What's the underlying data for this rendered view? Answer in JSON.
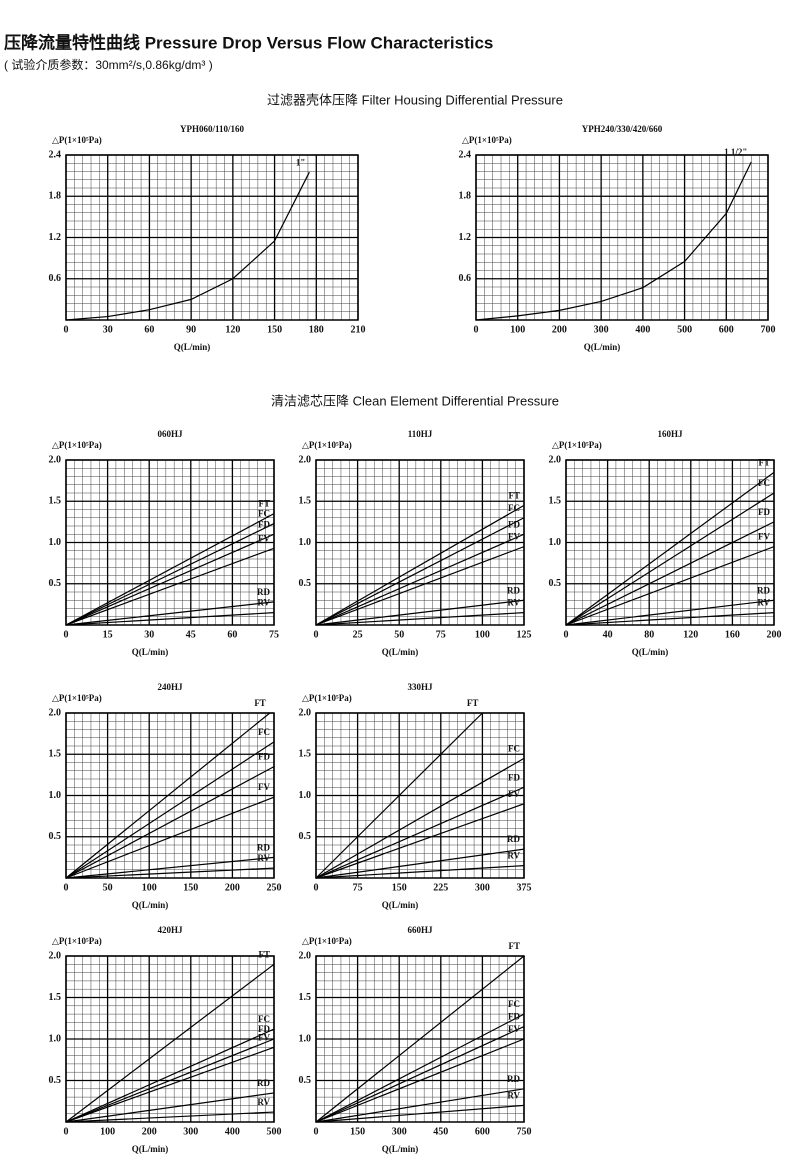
{
  "title": "压降流量特性曲线 Pressure Drop Versus Flow Characteristics",
  "subtitle": "( 试验介质参数：30mm²/s,0.86kg/dm³ )",
  "sections": [
    "过滤器壳体压降 Filter Housing Differential Pressure",
    "清洁滤芯压降 Clean Element Differential Pressure"
  ],
  "chart_data": [
    {
      "type": "line",
      "title": "YPH060/110/160",
      "y_label": "△P(1×10⁵Pa)",
      "x_label": "Q(L/min)",
      "color": "#000000",
      "xlim": [
        0,
        210
      ],
      "xticks": [
        0,
        30,
        60,
        90,
        120,
        150,
        180,
        210
      ],
      "ylim": [
        0,
        2.4
      ],
      "yticks": [
        0.6,
        1.2,
        1.8,
        2.4
      ],
      "series": [
        {
          "name": "1\"",
          "x": [
            0,
            30,
            60,
            90,
            120,
            150,
            175
          ],
          "values": [
            0,
            0.05,
            0.15,
            0.3,
            0.6,
            1.15,
            2.15
          ]
        }
      ]
    },
    {
      "type": "line",
      "title": "YPH240/330/420/660",
      "y_label": "△P(1×10⁵Pa)",
      "x_label": "Q(L/min)",
      "color": "#000000",
      "xlim": [
        0,
        700
      ],
      "xticks": [
        0,
        100,
        200,
        300,
        400,
        500,
        600,
        700
      ],
      "ylim": [
        0,
        2.4
      ],
      "yticks": [
        0.6,
        1.2,
        1.8,
        2.4
      ],
      "series": [
        {
          "name": "1 1/2\"",
          "x": [
            0,
            100,
            200,
            300,
            400,
            500,
            600,
            660
          ],
          "values": [
            0,
            0.06,
            0.14,
            0.27,
            0.47,
            0.85,
            1.55,
            2.3
          ]
        }
      ]
    },
    {
      "type": "line",
      "title": "060HJ",
      "y_label": "△P(1×10⁵Pa)",
      "x_label": "Q(L/min)",
      "color": "#000000",
      "xlim": [
        0,
        75
      ],
      "xticks": [
        0,
        15,
        30,
        45,
        60,
        75
      ],
      "ylim": [
        0,
        2
      ],
      "yticks": [
        {
          "value": 0.5,
          "label": "0.5"
        },
        {
          "value": 1,
          "label": "1.0"
        },
        {
          "value": 1.5,
          "label": "1.5"
        },
        {
          "value": 2,
          "label": "2.0"
        }
      ],
      "series": [
        {
          "name": "FT",
          "x": [
            0,
            75
          ],
          "values": [
            0,
            1.35
          ]
        },
        {
          "name": "FC",
          "x": [
            0,
            75
          ],
          "values": [
            0,
            1.23
          ]
        },
        {
          "name": "FD",
          "x": [
            0,
            75
          ],
          "values": [
            0,
            1.1
          ]
        },
        {
          "name": "FV",
          "x": [
            0,
            75
          ],
          "values": [
            0,
            0.93
          ]
        },
        {
          "name": "RD",
          "x": [
            0,
            75
          ],
          "values": [
            0,
            0.28
          ]
        },
        {
          "name": "RV",
          "x": [
            0,
            75
          ],
          "values": [
            0,
            0.15
          ]
        }
      ]
    },
    {
      "type": "line",
      "title": "110HJ",
      "y_label": "△P(1×10⁵Pa)",
      "x_label": "Q(L/min)",
      "color": "#000000",
      "xlim": [
        0,
        125
      ],
      "xticks": [
        0,
        25,
        50,
        75,
        100,
        125
      ],
      "ylim": [
        0,
        2
      ],
      "yticks": [
        {
          "value": 0.5,
          "label": "0.5"
        },
        {
          "value": 1,
          "label": "1.0"
        },
        {
          "value": 1.5,
          "label": "1.5"
        },
        {
          "value": 2,
          "label": "2.0"
        }
      ],
      "series": [
        {
          "name": "FT",
          "x": [
            0,
            125
          ],
          "values": [
            0,
            1.45
          ]
        },
        {
          "name": "FC",
          "x": [
            0,
            125
          ],
          "values": [
            0,
            1.3
          ]
        },
        {
          "name": "FD",
          "x": [
            0,
            125
          ],
          "values": [
            0,
            1.1
          ]
        },
        {
          "name": "FV",
          "x": [
            0,
            125
          ],
          "values": [
            0,
            0.95
          ]
        },
        {
          "name": "RD",
          "x": [
            0,
            125
          ],
          "values": [
            0,
            0.3
          ]
        },
        {
          "name": "RV",
          "x": [
            0,
            125
          ],
          "values": [
            0,
            0.15
          ]
        }
      ]
    },
    {
      "type": "line",
      "title": "160HJ",
      "y_label": "△P(1×10⁵Pa)",
      "x_label": "Q(L/min)",
      "color": "#000000",
      "xlim": [
        0,
        200
      ],
      "xticks": [
        0,
        40,
        80,
        120,
        160,
        200
      ],
      "ylim": [
        0,
        2
      ],
      "yticks": [
        {
          "value": 0.5,
          "label": "0.5"
        },
        {
          "value": 1,
          "label": "1.0"
        },
        {
          "value": 1.5,
          "label": "1.5"
        },
        {
          "value": 2,
          "label": "2.0"
        }
      ],
      "series": [
        {
          "name": "FT",
          "x": [
            0,
            200
          ],
          "values": [
            0,
            1.85
          ]
        },
        {
          "name": "FC",
          "x": [
            0,
            200
          ],
          "values": [
            0,
            1.6
          ]
        },
        {
          "name": "FD",
          "x": [
            0,
            200
          ],
          "values": [
            0,
            1.25
          ]
        },
        {
          "name": "FV",
          "x": [
            0,
            200
          ],
          "values": [
            0,
            0.95
          ]
        },
        {
          "name": "RD",
          "x": [
            0,
            200
          ],
          "values": [
            0,
            0.3
          ]
        },
        {
          "name": "RV",
          "x": [
            0,
            200
          ],
          "values": [
            0,
            0.15
          ]
        }
      ]
    },
    {
      "type": "line",
      "title": "240HJ",
      "y_label": "△P(1×10⁵Pa)",
      "x_label": "Q(L/min)",
      "color": "#000000",
      "xlim": [
        0,
        250
      ],
      "xticks": [
        0,
        50,
        100,
        150,
        200,
        250
      ],
      "ylim": [
        0,
        2
      ],
      "yticks": [
        {
          "value": 0.5,
          "label": "0.5"
        },
        {
          "value": 1,
          "label": "1.0"
        },
        {
          "value": 1.5,
          "label": "1.5"
        },
        {
          "value": 2,
          "label": "2.0"
        }
      ],
      "series": [
        {
          "name": "FT",
          "x": [
            0,
            245
          ],
          "values": [
            0,
            2
          ]
        },
        {
          "name": "FC",
          "x": [
            0,
            250
          ],
          "values": [
            0,
            1.65
          ]
        },
        {
          "name": "FD",
          "x": [
            0,
            250
          ],
          "values": [
            0,
            1.35
          ]
        },
        {
          "name": "FV",
          "x": [
            0,
            250
          ],
          "values": [
            0,
            0.98
          ]
        },
        {
          "name": "RD",
          "x": [
            0,
            250
          ],
          "values": [
            0,
            0.25
          ]
        },
        {
          "name": "RV",
          "x": [
            0,
            250
          ],
          "values": [
            0,
            0.12
          ]
        }
      ]
    },
    {
      "type": "line",
      "title": "330HJ",
      "y_label": "△P(1×10⁵Pa)",
      "x_label": "Q(L/min)",
      "color": "#000000",
      "xlim": [
        0,
        375
      ],
      "xticks": [
        0,
        75,
        150,
        225,
        300,
        375
      ],
      "ylim": [
        0,
        2
      ],
      "yticks": [
        {
          "value": 0.5,
          "label": "0.5"
        },
        {
          "value": 1,
          "label": "1.0"
        },
        {
          "value": 1.5,
          "label": "1.5"
        },
        {
          "value": 2,
          "label": "2.0"
        }
      ],
      "series": [
        {
          "name": "FT",
          "x": [
            0,
            300
          ],
          "values": [
            0,
            2
          ]
        },
        {
          "name": "FC",
          "x": [
            0,
            375
          ],
          "values": [
            0,
            1.45
          ]
        },
        {
          "name": "FD",
          "x": [
            0,
            375
          ],
          "values": [
            0,
            1.1
          ]
        },
        {
          "name": "FV",
          "x": [
            0,
            375
          ],
          "values": [
            0,
            0.9
          ]
        },
        {
          "name": "RD",
          "x": [
            0,
            375
          ],
          "values": [
            0,
            0.35
          ]
        },
        {
          "name": "RV",
          "x": [
            0,
            375
          ],
          "values": [
            0,
            0.15
          ]
        }
      ]
    },
    {
      "type": "line",
      "title": "420HJ",
      "y_label": "△P(1×10⁵Pa)",
      "x_label": "Q(L/min)",
      "color": "#000000",
      "xlim": [
        0,
        500
      ],
      "xticks": [
        0,
        100,
        200,
        300,
        400,
        500
      ],
      "ylim": [
        0,
        2
      ],
      "yticks": [
        {
          "value": 0.5,
          "label": "0.5"
        },
        {
          "value": 1,
          "label": "1.0"
        },
        {
          "value": 1.5,
          "label": "1.5"
        },
        {
          "value": 2,
          "label": "2.0"
        }
      ],
      "series": [
        {
          "name": "FT",
          "x": [
            0,
            500
          ],
          "values": [
            0,
            1.9
          ]
        },
        {
          "name": "FC",
          "x": [
            0,
            500
          ],
          "values": [
            0,
            1.12
          ]
        },
        {
          "name": "FD",
          "x": [
            0,
            500
          ],
          "values": [
            0,
            1
          ]
        },
        {
          "name": "FV",
          "x": [
            0,
            500
          ],
          "values": [
            0,
            0.9
          ]
        },
        {
          "name": "RD",
          "x": [
            0,
            500
          ],
          "values": [
            0,
            0.35
          ]
        },
        {
          "name": "RV",
          "x": [
            0,
            500
          ],
          "values": [
            0,
            0.12
          ]
        }
      ]
    },
    {
      "type": "line",
      "title": "660HJ",
      "y_label": "△P(1×10⁵Pa)",
      "x_label": "Q(L/min)",
      "color": "#000000",
      "xlim": [
        0,
        750
      ],
      "xticks": [
        0,
        150,
        300,
        450,
        600,
        750
      ],
      "ylim": [
        0,
        2
      ],
      "yticks": [
        {
          "value": 0.5,
          "label": "0.5"
        },
        {
          "value": 1,
          "label": "1.0"
        },
        {
          "value": 1.5,
          "label": "1.5"
        },
        {
          "value": 2,
          "label": "2.0"
        }
      ],
      "series": [
        {
          "name": "FT",
          "x": [
            0,
            750
          ],
          "values": [
            0,
            2
          ]
        },
        {
          "name": "FC",
          "x": [
            0,
            750
          ],
          "values": [
            0,
            1.3
          ]
        },
        {
          "name": "FD",
          "x": [
            0,
            750
          ],
          "values": [
            0,
            1.15
          ]
        },
        {
          "name": "FV",
          "x": [
            0,
            750
          ],
          "values": [
            0,
            1
          ]
        },
        {
          "name": "RD",
          "x": [
            0,
            750
          ],
          "values": [
            0,
            0.4
          ]
        },
        {
          "name": "RV",
          "x": [
            0,
            750
          ],
          "values": [
            0,
            0.2
          ]
        }
      ]
    }
  ]
}
